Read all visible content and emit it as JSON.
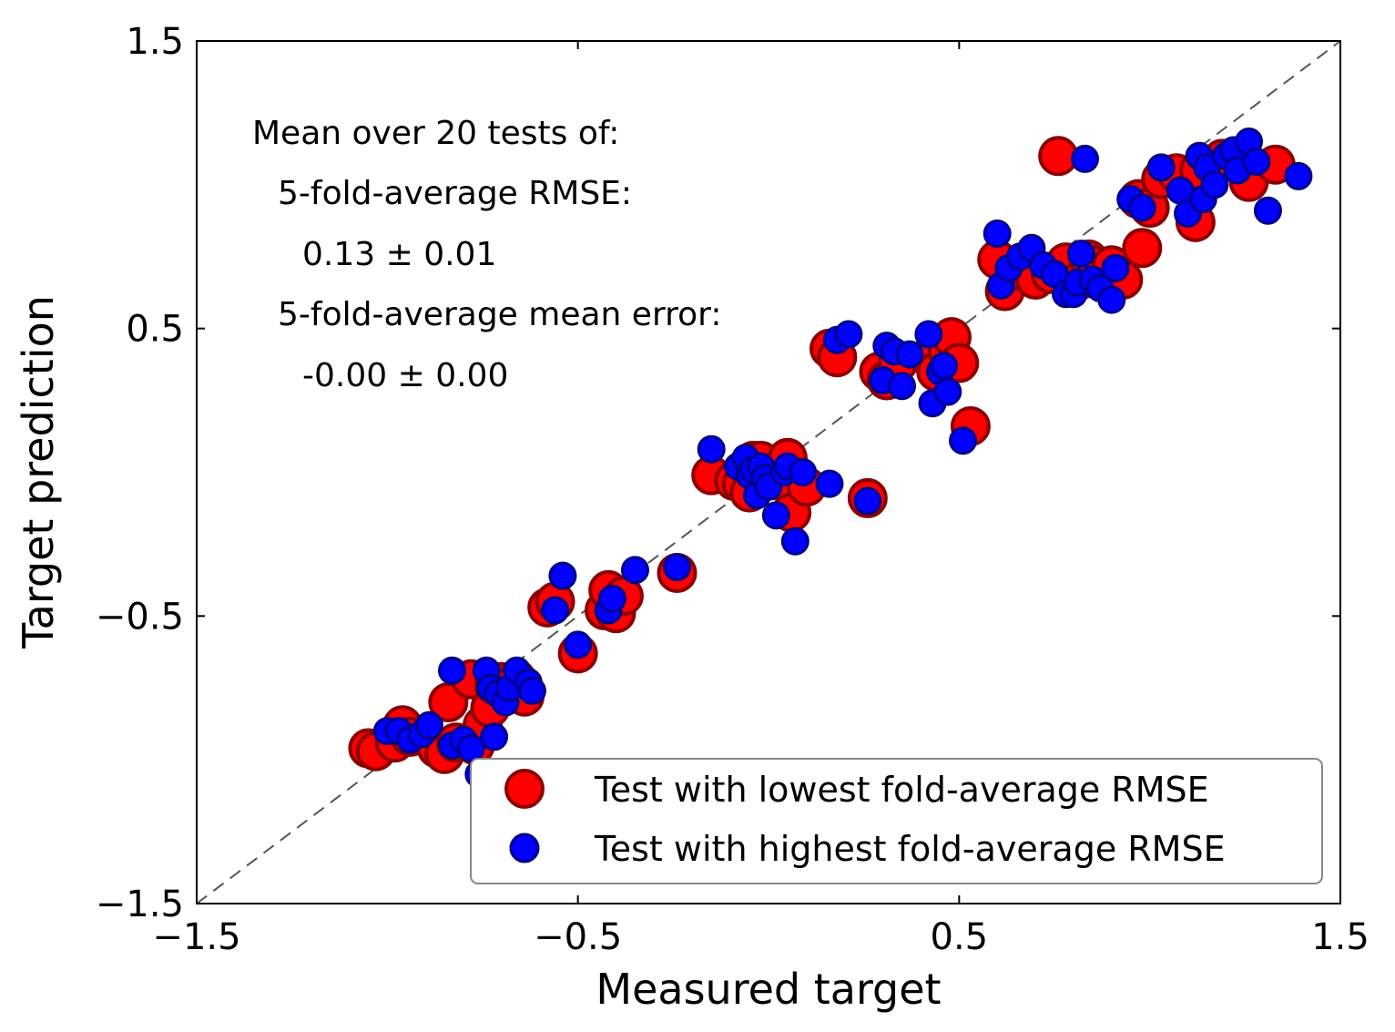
{
  "chart_data": {
    "type": "scatter",
    "xlabel": "Measured target",
    "ylabel": "Target prediction",
    "xlim": [
      -1.5,
      1.5
    ],
    "ylim": [
      -1.5,
      1.5
    ],
    "xticks": [
      "−1.5",
      "−0.5",
      "0.5",
      "1.5"
    ],
    "yticks": [
      "−1.5",
      "−0.5",
      "0.5",
      "1.5"
    ],
    "xtick_values": [
      -1.5,
      -0.5,
      0.5,
      1.5
    ],
    "ytick_values": [
      -1.5,
      -0.5,
      0.5,
      1.5
    ],
    "grid": false,
    "identity_line": true,
    "legend_position": "lower-right",
    "annotation": [
      "Mean over 20 tests of:",
      "5-fold-average RMSE:",
      "0.13 ± 0.01",
      "5-fold-average mean error:",
      "-0.00 ± 0.00"
    ],
    "series": [
      {
        "name": "Test with lowest fold-average RMSE",
        "color": "#ff0000",
        "edge_color": "#8b0000",
        "marker": "large-circle",
        "points": [
          [
            -1.05,
            -0.96
          ],
          [
            -1.03,
            -0.97
          ],
          [
            -0.98,
            -0.94
          ],
          [
            -0.96,
            -0.88
          ],
          [
            -0.94,
            -0.92
          ],
          [
            -0.87,
            -0.96
          ],
          [
            -0.85,
            -0.98
          ],
          [
            -0.84,
            -0.8
          ],
          [
            -0.82,
            -0.94
          ],
          [
            -0.78,
            -0.72
          ],
          [
            -0.77,
            -0.95
          ],
          [
            -0.75,
            -0.88
          ],
          [
            -0.73,
            -0.82
          ],
          [
            -0.72,
            -0.74
          ],
          [
            -0.7,
            -0.73
          ],
          [
            -0.66,
            -0.72
          ],
          [
            -0.65,
            -0.75
          ],
          [
            -0.64,
            -0.78
          ],
          [
            -0.58,
            -0.47
          ],
          [
            -0.56,
            -0.45
          ],
          [
            -0.5,
            -0.63
          ],
          [
            -0.43,
            -0.48
          ],
          [
            -0.42,
            -0.41
          ],
          [
            -0.4,
            -0.49
          ],
          [
            -0.38,
            -0.43
          ],
          [
            -0.24,
            -0.35
          ],
          [
            -0.15,
            -0.01
          ],
          [
            -0.09,
            -0.03
          ],
          [
            -0.07,
            -0.04
          ],
          [
            -0.05,
            -0.07
          ],
          [
            -0.04,
            0.04
          ],
          [
            -0.02,
            0.04
          ],
          [
            0.0,
            -0.02
          ],
          [
            0.03,
            -0.03
          ],
          [
            0.05,
            0.05
          ],
          [
            0.06,
            -0.14
          ],
          [
            0.1,
            -0.05
          ],
          [
            0.16,
            0.43
          ],
          [
            0.18,
            0.4
          ],
          [
            0.26,
            -0.09
          ],
          [
            0.29,
            0.35
          ],
          [
            0.31,
            0.32
          ],
          [
            0.34,
            0.38
          ],
          [
            0.42,
            0.4
          ],
          [
            0.44,
            0.35
          ],
          [
            0.47,
            0.42
          ],
          [
            0.48,
            0.47
          ],
          [
            0.5,
            0.38
          ],
          [
            0.53,
            0.16
          ],
          [
            0.6,
            0.74
          ],
          [
            0.62,
            0.63
          ],
          [
            0.66,
            0.7
          ],
          [
            0.7,
            0.67
          ],
          [
            0.74,
            0.69
          ],
          [
            0.76,
            1.1
          ],
          [
            0.78,
            0.73
          ],
          [
            0.82,
            0.67
          ],
          [
            0.84,
            0.74
          ],
          [
            0.86,
            0.72
          ],
          [
            0.9,
            0.72
          ],
          [
            0.93,
            0.67
          ],
          [
            0.97,
            0.95
          ],
          [
            0.98,
            0.78
          ],
          [
            1.0,
            0.92
          ],
          [
            1.03,
            1.02
          ],
          [
            1.07,
            1.04
          ],
          [
            1.12,
            0.87
          ],
          [
            1.13,
            1.05
          ],
          [
            1.19,
            1.09
          ],
          [
            1.26,
            1.01
          ],
          [
            1.33,
            1.07
          ]
        ]
      },
      {
        "name": "Test with highest fold-average RMSE",
        "color": "#0000ff",
        "edge_color": "#00008b",
        "marker": "small-circle",
        "points": [
          [
            -1.0,
            -0.9
          ],
          [
            -0.97,
            -0.9
          ],
          [
            -0.94,
            -0.93
          ],
          [
            -0.91,
            -0.91
          ],
          [
            -0.89,
            -0.88
          ],
          [
            -0.83,
            -0.69
          ],
          [
            -0.83,
            -0.95
          ],
          [
            -0.8,
            -0.93
          ],
          [
            -0.78,
            -0.96
          ],
          [
            -0.76,
            -1.05
          ],
          [
            -0.74,
            -0.69
          ],
          [
            -0.73,
            -0.75
          ],
          [
            -0.72,
            -0.92
          ],
          [
            -0.71,
            -0.77
          ],
          [
            -0.69,
            -0.8
          ],
          [
            -0.68,
            -0.75
          ],
          [
            -0.66,
            -0.69
          ],
          [
            -0.63,
            -0.73
          ],
          [
            -0.62,
            -0.76
          ],
          [
            -0.56,
            -0.48
          ],
          [
            -0.54,
            -0.36
          ],
          [
            -0.5,
            -0.6
          ],
          [
            -0.42,
            -0.48
          ],
          [
            -0.41,
            -0.44
          ],
          [
            -0.35,
            -0.34
          ],
          [
            -0.24,
            -0.33
          ],
          [
            -0.15,
            0.08
          ],
          [
            -0.08,
            0.02
          ],
          [
            -0.06,
            0.05
          ],
          [
            -0.05,
            -0.01
          ],
          [
            -0.04,
            0.01
          ],
          [
            -0.03,
            -0.08
          ],
          [
            -0.02,
            0.02
          ],
          [
            -0.01,
            -0.02
          ],
          [
            0.0,
            -0.05
          ],
          [
            0.02,
            -0.15
          ],
          [
            0.04,
            0.0
          ],
          [
            0.05,
            0.02
          ],
          [
            0.07,
            -0.24
          ],
          [
            0.09,
            0.0
          ],
          [
            0.16,
            -0.04
          ],
          [
            0.18,
            0.46
          ],
          [
            0.21,
            0.48
          ],
          [
            0.26,
            -0.1
          ],
          [
            0.3,
            0.32
          ],
          [
            0.31,
            0.44
          ],
          [
            0.33,
            0.42
          ],
          [
            0.35,
            0.3
          ],
          [
            0.37,
            0.41
          ],
          [
            0.42,
            0.48
          ],
          [
            0.43,
            0.24
          ],
          [
            0.45,
            0.35
          ],
          [
            0.46,
            0.37
          ],
          [
            0.47,
            0.28
          ],
          [
            0.51,
            0.11
          ],
          [
            0.6,
            0.83
          ],
          [
            0.61,
            0.65
          ],
          [
            0.63,
            0.71
          ],
          [
            0.66,
            0.75
          ],
          [
            0.69,
            0.78
          ],
          [
            0.72,
            0.72
          ],
          [
            0.75,
            0.69
          ],
          [
            0.78,
            0.62
          ],
          [
            0.8,
            0.62
          ],
          [
            0.81,
            0.66
          ],
          [
            0.82,
            0.76
          ],
          [
            0.83,
            1.09
          ],
          [
            0.85,
            0.67
          ],
          [
            0.87,
            0.64
          ],
          [
            0.9,
            0.6
          ],
          [
            0.91,
            0.71
          ],
          [
            0.95,
            0.95
          ],
          [
            0.98,
            0.92
          ],
          [
            1.03,
            1.06
          ],
          [
            1.08,
            0.98
          ],
          [
            1.1,
            0.9
          ],
          [
            1.13,
            1.1
          ],
          [
            1.14,
            0.95
          ],
          [
            1.15,
            1.06
          ],
          [
            1.17,
            1.0
          ],
          [
            1.2,
            1.1
          ],
          [
            1.22,
            1.12
          ],
          [
            1.23,
            1.05
          ],
          [
            1.26,
            1.15
          ],
          [
            1.28,
            1.08
          ],
          [
            1.31,
            0.91
          ],
          [
            1.39,
            1.03
          ]
        ]
      }
    ]
  }
}
